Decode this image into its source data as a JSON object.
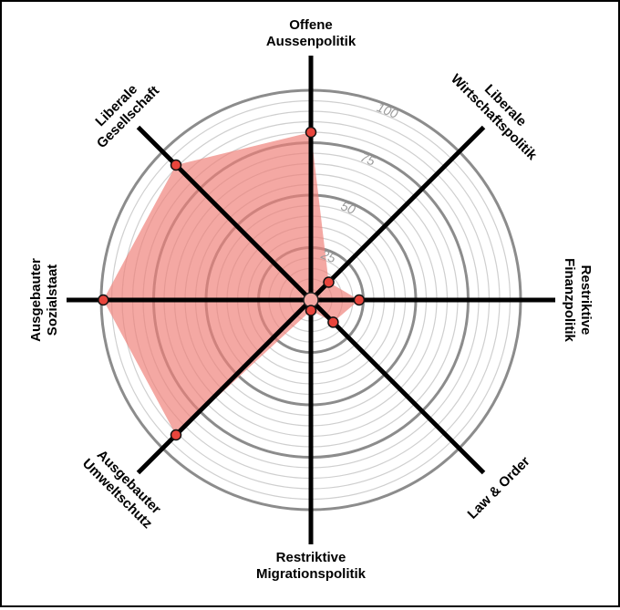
{
  "chart_data": {
    "type": "radar",
    "title": "",
    "axes": [
      {
        "lines": [
          "Offene",
          "Aussenpolitik"
        ]
      },
      {
        "lines": [
          "Liberale",
          "Wirtschaftspolitik"
        ]
      },
      {
        "lines": [
          "Restriktive",
          "Finanzpolitik"
        ]
      },
      {
        "lines": [
          "Law & Order"
        ]
      },
      {
        "lines": [
          "Restriktive",
          "Migrationspolitik"
        ]
      },
      {
        "lines": [
          "Ausgebauter",
          "Umweltschutz"
        ]
      },
      {
        "lines": [
          "Ausgebauter",
          "Sozialstaat"
        ]
      },
      {
        "lines": [
          "Liberale",
          "Gesellschaft"
        ]
      }
    ],
    "values": [
      80,
      12,
      23,
      15,
      5,
      91,
      99,
      91
    ],
    "range": [
      0,
      100
    ],
    "ticks": [
      25,
      50,
      75,
      100
    ],
    "tick_labels": [
      "25",
      "50",
      "75",
      "100"
    ],
    "major_rings": [
      25,
      50,
      75,
      100
    ],
    "minor_ring_step": 5,
    "colors": {
      "fill": "#ef7f78",
      "point": "#e8453c",
      "axis": "#000000",
      "ring_major": "#8c8c8c",
      "ring_minor": "#cfcfcf"
    }
  }
}
